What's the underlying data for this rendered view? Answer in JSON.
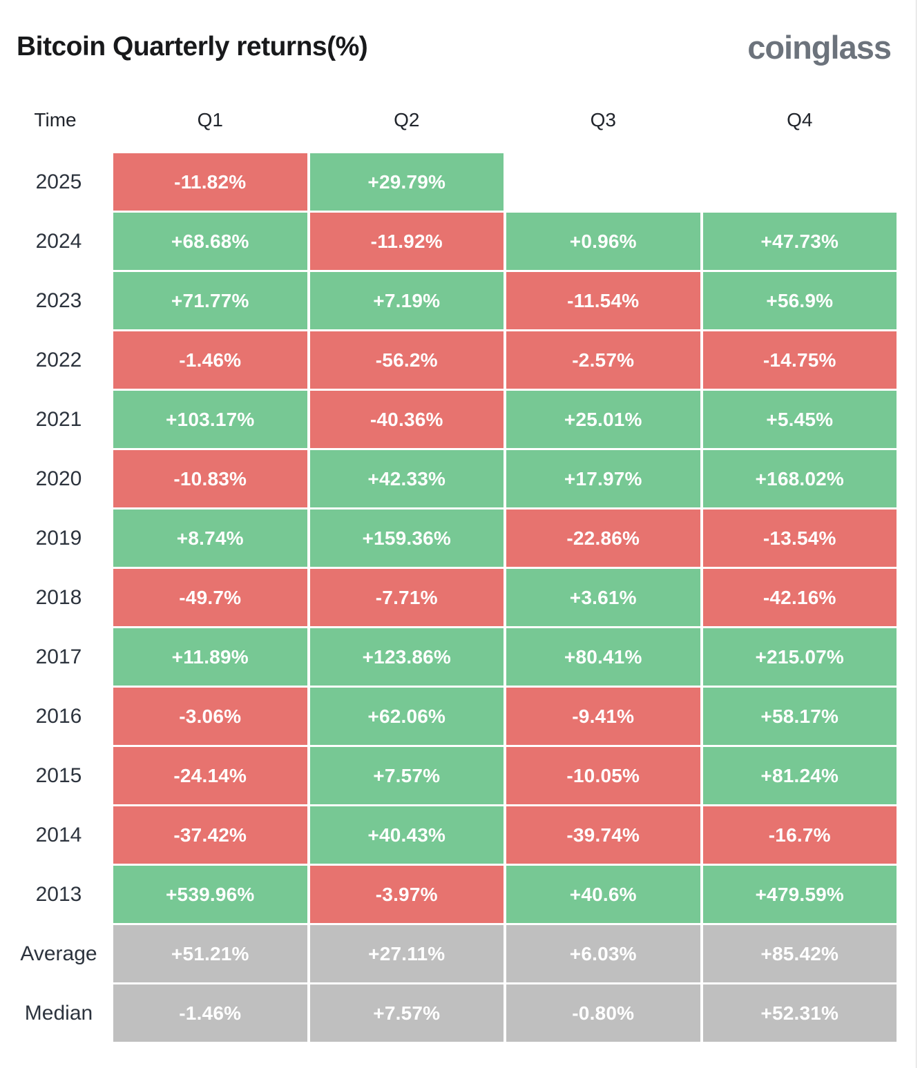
{
  "header": {
    "title": "Bitcoin Quarterly returns(%)",
    "logo": "coinglass"
  },
  "colors": {
    "positive": "#77c894",
    "negative": "#e7736f",
    "summary": "#bfbfbf",
    "cell_text": "#ffffff",
    "title_text": "#18191b",
    "logo_text": "#6c737c"
  },
  "table": {
    "columns": [
      "Time",
      "Q1",
      "Q2",
      "Q3",
      "Q4"
    ],
    "rows": [
      {
        "label": "2025",
        "cells": [
          {
            "text": "-11.82%",
            "type": "negative"
          },
          {
            "text": "+29.79%",
            "type": "positive"
          },
          null,
          null
        ]
      },
      {
        "label": "2024",
        "cells": [
          {
            "text": "+68.68%",
            "type": "positive"
          },
          {
            "text": "-11.92%",
            "type": "negative"
          },
          {
            "text": "+0.96%",
            "type": "positive"
          },
          {
            "text": "+47.73%",
            "type": "positive"
          }
        ]
      },
      {
        "label": "2023",
        "cells": [
          {
            "text": "+71.77%",
            "type": "positive"
          },
          {
            "text": "+7.19%",
            "type": "positive"
          },
          {
            "text": "-11.54%",
            "type": "negative"
          },
          {
            "text": "+56.9%",
            "type": "positive"
          }
        ]
      },
      {
        "label": "2022",
        "cells": [
          {
            "text": "-1.46%",
            "type": "negative"
          },
          {
            "text": "-56.2%",
            "type": "negative"
          },
          {
            "text": "-2.57%",
            "type": "negative"
          },
          {
            "text": "-14.75%",
            "type": "negative"
          }
        ]
      },
      {
        "label": "2021",
        "cells": [
          {
            "text": "+103.17%",
            "type": "positive"
          },
          {
            "text": "-40.36%",
            "type": "negative"
          },
          {
            "text": "+25.01%",
            "type": "positive"
          },
          {
            "text": "+5.45%",
            "type": "positive"
          }
        ]
      },
      {
        "label": "2020",
        "cells": [
          {
            "text": "-10.83%",
            "type": "negative"
          },
          {
            "text": "+42.33%",
            "type": "positive"
          },
          {
            "text": "+17.97%",
            "type": "positive"
          },
          {
            "text": "+168.02%",
            "type": "positive"
          }
        ]
      },
      {
        "label": "2019",
        "cells": [
          {
            "text": "+8.74%",
            "type": "positive"
          },
          {
            "text": "+159.36%",
            "type": "positive"
          },
          {
            "text": "-22.86%",
            "type": "negative"
          },
          {
            "text": "-13.54%",
            "type": "negative"
          }
        ]
      },
      {
        "label": "2018",
        "cells": [
          {
            "text": "-49.7%",
            "type": "negative"
          },
          {
            "text": "-7.71%",
            "type": "negative"
          },
          {
            "text": "+3.61%",
            "type": "positive"
          },
          {
            "text": "-42.16%",
            "type": "negative"
          }
        ]
      },
      {
        "label": "2017",
        "cells": [
          {
            "text": "+11.89%",
            "type": "positive"
          },
          {
            "text": "+123.86%",
            "type": "positive"
          },
          {
            "text": "+80.41%",
            "type": "positive"
          },
          {
            "text": "+215.07%",
            "type": "positive"
          }
        ]
      },
      {
        "label": "2016",
        "cells": [
          {
            "text": "-3.06%",
            "type": "negative"
          },
          {
            "text": "+62.06%",
            "type": "positive"
          },
          {
            "text": "-9.41%",
            "type": "negative"
          },
          {
            "text": "+58.17%",
            "type": "positive"
          }
        ]
      },
      {
        "label": "2015",
        "cells": [
          {
            "text": "-24.14%",
            "type": "negative"
          },
          {
            "text": "+7.57%",
            "type": "positive"
          },
          {
            "text": "-10.05%",
            "type": "negative"
          },
          {
            "text": "+81.24%",
            "type": "positive"
          }
        ]
      },
      {
        "label": "2014",
        "cells": [
          {
            "text": "-37.42%",
            "type": "negative"
          },
          {
            "text": "+40.43%",
            "type": "positive"
          },
          {
            "text": "-39.74%",
            "type": "negative"
          },
          {
            "text": "-16.7%",
            "type": "negative"
          }
        ]
      },
      {
        "label": "2013",
        "cells": [
          {
            "text": "+539.96%",
            "type": "positive"
          },
          {
            "text": "-3.97%",
            "type": "negative"
          },
          {
            "text": "+40.6%",
            "type": "positive"
          },
          {
            "text": "+479.59%",
            "type": "positive"
          }
        ]
      },
      {
        "label": "Average",
        "cells": [
          {
            "text": "+51.21%",
            "type": "summary"
          },
          {
            "text": "+27.11%",
            "type": "summary"
          },
          {
            "text": "+6.03%",
            "type": "summary"
          },
          {
            "text": "+85.42%",
            "type": "summary"
          }
        ]
      },
      {
        "label": "Median",
        "cells": [
          {
            "text": "-1.46%",
            "type": "summary"
          },
          {
            "text": "+7.57%",
            "type": "summary"
          },
          {
            "text": "-0.80%",
            "type": "summary"
          },
          {
            "text": "+52.31%",
            "type": "summary"
          }
        ]
      }
    ]
  },
  "chart_data": {
    "type": "heatmap",
    "title": "Bitcoin Quarterly returns(%)",
    "columns": [
      "Q1",
      "Q2",
      "Q3",
      "Q4"
    ],
    "rows": [
      "2025",
      "2024",
      "2023",
      "2022",
      "2021",
      "2020",
      "2019",
      "2018",
      "2017",
      "2016",
      "2015",
      "2014",
      "2013",
      "Average",
      "Median"
    ],
    "values": [
      [
        -11.82,
        29.79,
        null,
        null
      ],
      [
        68.68,
        -11.92,
        0.96,
        47.73
      ],
      [
        71.77,
        7.19,
        -11.54,
        56.9
      ],
      [
        -1.46,
        -56.2,
        -2.57,
        -14.75
      ],
      [
        103.17,
        -40.36,
        25.01,
        5.45
      ],
      [
        -10.83,
        42.33,
        17.97,
        168.02
      ],
      [
        8.74,
        159.36,
        -22.86,
        -13.54
      ],
      [
        -49.7,
        -7.71,
        3.61,
        -42.16
      ],
      [
        11.89,
        123.86,
        80.41,
        215.07
      ],
      [
        -3.06,
        62.06,
        -9.41,
        58.17
      ],
      [
        -24.14,
        7.57,
        -10.05,
        81.24
      ],
      [
        -37.42,
        40.43,
        -39.74,
        -16.7
      ],
      [
        539.96,
        -3.97,
        40.6,
        479.59
      ],
      [
        51.21,
        27.11,
        6.03,
        85.42
      ],
      [
        -1.46,
        7.57,
        -0.8,
        52.31
      ]
    ],
    "legend": "green = positive quarterly return, red = negative quarterly return, gray = Average/Median summary rows",
    "units": "percent"
  }
}
